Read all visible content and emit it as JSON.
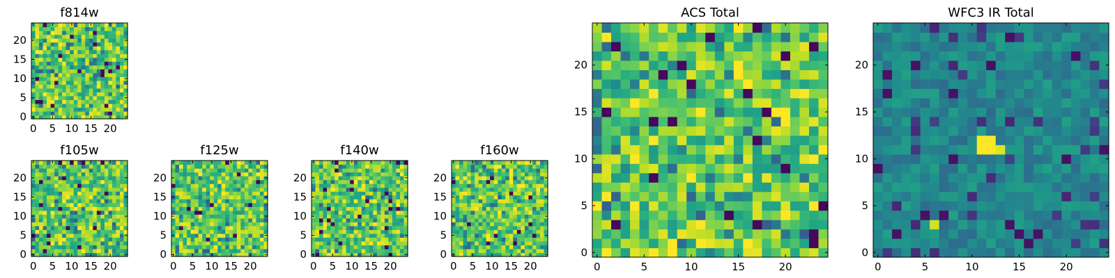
{
  "chart_data": [
    {
      "type": "heatmap",
      "title": "f814w",
      "xlim": [
        0,
        25
      ],
      "ylim": [
        0,
        25
      ],
      "xticks": [
        0,
        5,
        10,
        15,
        20
      ],
      "yticks": [
        0,
        5,
        10,
        15,
        20
      ],
      "grid_size": 25,
      "colormap": "viridis",
      "seed": 11
    },
    {
      "type": "heatmap",
      "title": "f105w",
      "xlim": [
        0,
        25
      ],
      "ylim": [
        0,
        25
      ],
      "xticks": [
        0,
        5,
        10,
        15,
        20
      ],
      "yticks": [
        0,
        5,
        10,
        15,
        20
      ],
      "grid_size": 25,
      "colormap": "viridis",
      "seed": 23
    },
    {
      "type": "heatmap",
      "title": "f125w",
      "xlim": [
        0,
        25
      ],
      "ylim": [
        0,
        25
      ],
      "xticks": [
        0,
        5,
        10,
        15,
        20
      ],
      "yticks": [
        0,
        5,
        10,
        15,
        20
      ],
      "grid_size": 25,
      "colormap": "viridis",
      "seed": 37
    },
    {
      "type": "heatmap",
      "title": "f140w",
      "xlim": [
        0,
        25
      ],
      "ylim": [
        0,
        25
      ],
      "xticks": [
        0,
        5,
        10,
        15,
        20
      ],
      "yticks": [
        0,
        5,
        10,
        15,
        20
      ],
      "grid_size": 25,
      "colormap": "viridis",
      "seed": 41
    },
    {
      "type": "heatmap",
      "title": "f160w",
      "xlim": [
        0,
        25
      ],
      "ylim": [
        0,
        25
      ],
      "xticks": [
        0,
        5,
        10,
        15,
        20
      ],
      "yticks": [
        0,
        5,
        10,
        15,
        20
      ],
      "grid_size": 25,
      "colormap": "viridis",
      "seed": 53
    },
    {
      "type": "heatmap",
      "title": "ACS Total",
      "xlim": [
        0,
        25
      ],
      "ylim": [
        0,
        25
      ],
      "xticks": [
        0,
        5,
        10,
        15,
        20
      ],
      "yticks": [
        0,
        5,
        10,
        15,
        20
      ],
      "grid_size": 25,
      "colormap": "viridis",
      "seed": 67
    },
    {
      "type": "heatmap",
      "title": "WFC3 IR Total",
      "xlim": [
        0,
        25
      ],
      "ylim": [
        0,
        25
      ],
      "xticks": [
        0,
        5,
        10,
        15,
        20
      ],
      "yticks": [
        0,
        5,
        10,
        15,
        20
      ],
      "grid_size": 25,
      "colormap": "viridis",
      "seed": 79
    }
  ]
}
